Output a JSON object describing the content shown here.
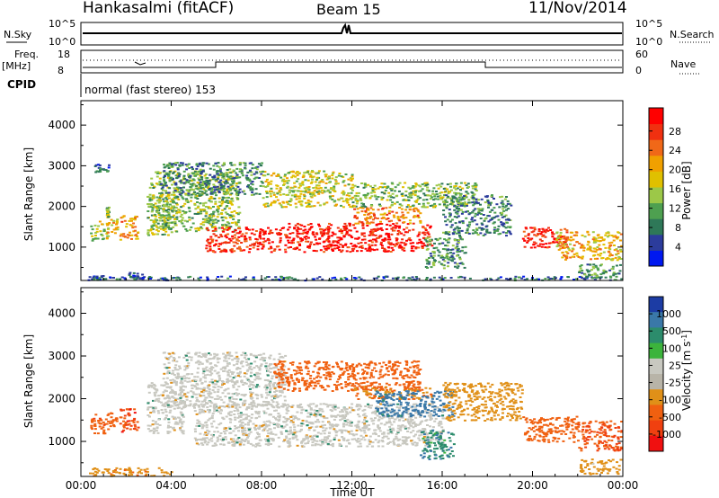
{
  "header": {
    "station": "Hankasalmi (fitACF)",
    "beam": "Beam 15",
    "date": "11/Nov/2014"
  },
  "labels": {
    "n_sky": "N.Sky",
    "n_search": "N.Search",
    "freq": "Freq.",
    "freq_unit": "[MHz]",
    "nave": "Nave",
    "cpid": "CPID",
    "cpid_text": "normal (fast stereo) 153",
    "sky_ticks_left": [
      "10^5",
      "10^0"
    ],
    "sky_ticks_right": [
      "10^5",
      "10^0"
    ],
    "freq_ticks_left": [
      "18",
      "8"
    ],
    "freq_ticks_right": [
      "60",
      "0"
    ],
    "x_axis_label": "Time UT"
  },
  "colors": {
    "power": [
      "#0018f0",
      "#2c3c9c",
      "#2e7858",
      "#4ea050",
      "#9cc848",
      "#e0c000",
      "#f0a000",
      "#f06818",
      "#f03010",
      "#ff0000"
    ],
    "velocity": [
      "#1c3ca4",
      "#3a78a8",
      "#2c8c6c",
      "#3cb43c",
      "#c8c8c0",
      "#b8b4a8",
      "#e09018",
      "#f06010",
      "#f04010",
      "#f01010"
    ],
    "velocity_gray": "#c8c8c0"
  },
  "chart_data": [
    {
      "type": "heatmap",
      "title": "Power",
      "ylabel": "Slant Range [km]",
      "xlabel": "",
      "x_tick_labels": [
        "00:00",
        "04:00",
        "08:00",
        "12:00",
        "16:00",
        "20:00",
        "00:00"
      ],
      "x_hours": [
        0,
        4,
        8,
        12,
        16,
        20,
        24
      ],
      "ylim": [
        180,
        4600
      ],
      "y_tick_labels": [
        "1000",
        "2000",
        "3000",
        "4000"
      ],
      "y_ticks": [
        1000,
        2000,
        3000,
        4000
      ],
      "colorbar_label": "Power [dB]",
      "colorbar_ticks": [
        "4",
        "8",
        "12",
        "16",
        "20",
        "24",
        "28"
      ],
      "regions": [
        {
          "t0": 0.3,
          "t1": 1.0,
          "r0": 200,
          "r1": 320,
          "v": 5
        },
        {
          "t0": 0.4,
          "t1": 1.2,
          "r0": 1180,
          "r1": 1650,
          "v": 14
        },
        {
          "t0": 1.1,
          "t1": 1.2,
          "r0": 1750,
          "r1": 2000,
          "v": 12
        },
        {
          "t0": 0.5,
          "t1": 1.2,
          "r0": 2850,
          "r1": 3050,
          "v": 6
        },
        {
          "t0": 1.1,
          "t1": 1.6,
          "r0": 1350,
          "r1": 1700,
          "v": 18
        },
        {
          "t0": 1.7,
          "t1": 2.5,
          "r0": 1200,
          "r1": 1800,
          "v": 20
        },
        {
          "t0": 2.0,
          "t1": 2.8,
          "r0": 200,
          "r1": 400,
          "v": 6
        },
        {
          "t0": 2.9,
          "t1": 4.2,
          "r0": 1300,
          "r1": 2300,
          "v": 12
        },
        {
          "t0": 3.0,
          "t1": 7.0,
          "r0": 1400,
          "r1": 2900,
          "v": 13
        },
        {
          "t0": 3.5,
          "t1": 8.0,
          "r0": 2300,
          "r1": 3100,
          "v": 8
        },
        {
          "t0": 5.5,
          "t1": 9.0,
          "r0": 900,
          "r1": 1500,
          "v": 26
        },
        {
          "t0": 8.0,
          "t1": 12.0,
          "r0": 2000,
          "r1": 2900,
          "v": 15
        },
        {
          "t0": 9.0,
          "t1": 15.5,
          "r0": 900,
          "r1": 1600,
          "v": 28
        },
        {
          "t0": 12.0,
          "t1": 15.0,
          "r0": 1600,
          "r1": 2000,
          "v": 22
        },
        {
          "t0": 12.0,
          "t1": 17.5,
          "r0": 2000,
          "r1": 2600,
          "v": 12
        },
        {
          "t0": 15.2,
          "t1": 17.0,
          "r0": 500,
          "r1": 1300,
          "v": 10
        },
        {
          "t0": 16.0,
          "t1": 19.0,
          "r0": 1300,
          "r1": 2300,
          "v": 8
        },
        {
          "t0": 19.5,
          "t1": 21.5,
          "r0": 1000,
          "r1": 1500,
          "v": 27
        },
        {
          "t0": 21.0,
          "t1": 23.9,
          "r0": 700,
          "r1": 1400,
          "v": 18
        },
        {
          "t0": 22.0,
          "t1": 23.9,
          "r0": 250,
          "r1": 600,
          "v": 10
        },
        {
          "t0": 1.0,
          "t1": 23.9,
          "r0": 200,
          "r1": 300,
          "v": 6
        }
      ]
    },
    {
      "type": "heatmap",
      "title": "Velocity",
      "ylabel": "Slant Range [km]",
      "xlabel": "Time UT",
      "x_tick_labels": [
        "00:00",
        "04:00",
        "08:00",
        "12:00",
        "16:00",
        "20:00",
        "00:00"
      ],
      "x_hours": [
        0,
        4,
        8,
        12,
        16,
        20,
        24
      ],
      "ylim": [
        180,
        4600
      ],
      "y_tick_labels": [
        "1000",
        "2000",
        "3000",
        "4000"
      ],
      "y_ticks": [
        1000,
        2000,
        3000,
        4000
      ],
      "colorbar_label": "Velocity [m s^-1]",
      "colorbar_ticks": [
        "1000",
        "500",
        "100",
        "25",
        "-25",
        "-100",
        "-500",
        "-1000"
      ],
      "regions": [
        {
          "t0": 0.4,
          "t1": 1.2,
          "r0": 1200,
          "r1": 1650,
          "v": -400
        },
        {
          "t0": 1.1,
          "t1": 1.6,
          "r0": 1350,
          "r1": 1700,
          "v": -150
        },
        {
          "t0": 1.7,
          "t1": 2.5,
          "r0": 1200,
          "r1": 1800,
          "v": -600
        },
        {
          "t0": 2.9,
          "t1": 4.5,
          "r0": 1200,
          "r1": 2400,
          "v": 0
        },
        {
          "t0": 3.6,
          "t1": 9.0,
          "r0": 1800,
          "r1": 3100,
          "v": 0
        },
        {
          "t0": 5.0,
          "t1": 16.0,
          "r0": 900,
          "r1": 1900,
          "v": 0
        },
        {
          "t0": 8.5,
          "t1": 15.0,
          "r0": 2200,
          "r1": 2900,
          "v": -200
        },
        {
          "t0": 12.0,
          "t1": 15.5,
          "r0": 2000,
          "r1": 2300,
          "v": -100
        },
        {
          "t0": 13.0,
          "t1": 16.5,
          "r0": 1600,
          "r1": 2200,
          "v": 150
        },
        {
          "t0": 15.0,
          "t1": 16.5,
          "r0": 600,
          "r1": 1300,
          "v": 80
        },
        {
          "t0": 16.0,
          "t1": 19.5,
          "r0": 1500,
          "r1": 2400,
          "v": -60
        },
        {
          "t0": 19.5,
          "t1": 22.0,
          "r0": 1000,
          "r1": 1600,
          "v": -300
        },
        {
          "t0": 22.0,
          "t1": 23.9,
          "r0": 800,
          "r1": 1500,
          "v": -500
        },
        {
          "t0": 0.3,
          "t1": 4.0,
          "r0": 200,
          "r1": 400,
          "v": -80
        },
        {
          "t0": 22.0,
          "t1": 23.9,
          "r0": 250,
          "r1": 600,
          "v": -40
        }
      ]
    }
  ]
}
